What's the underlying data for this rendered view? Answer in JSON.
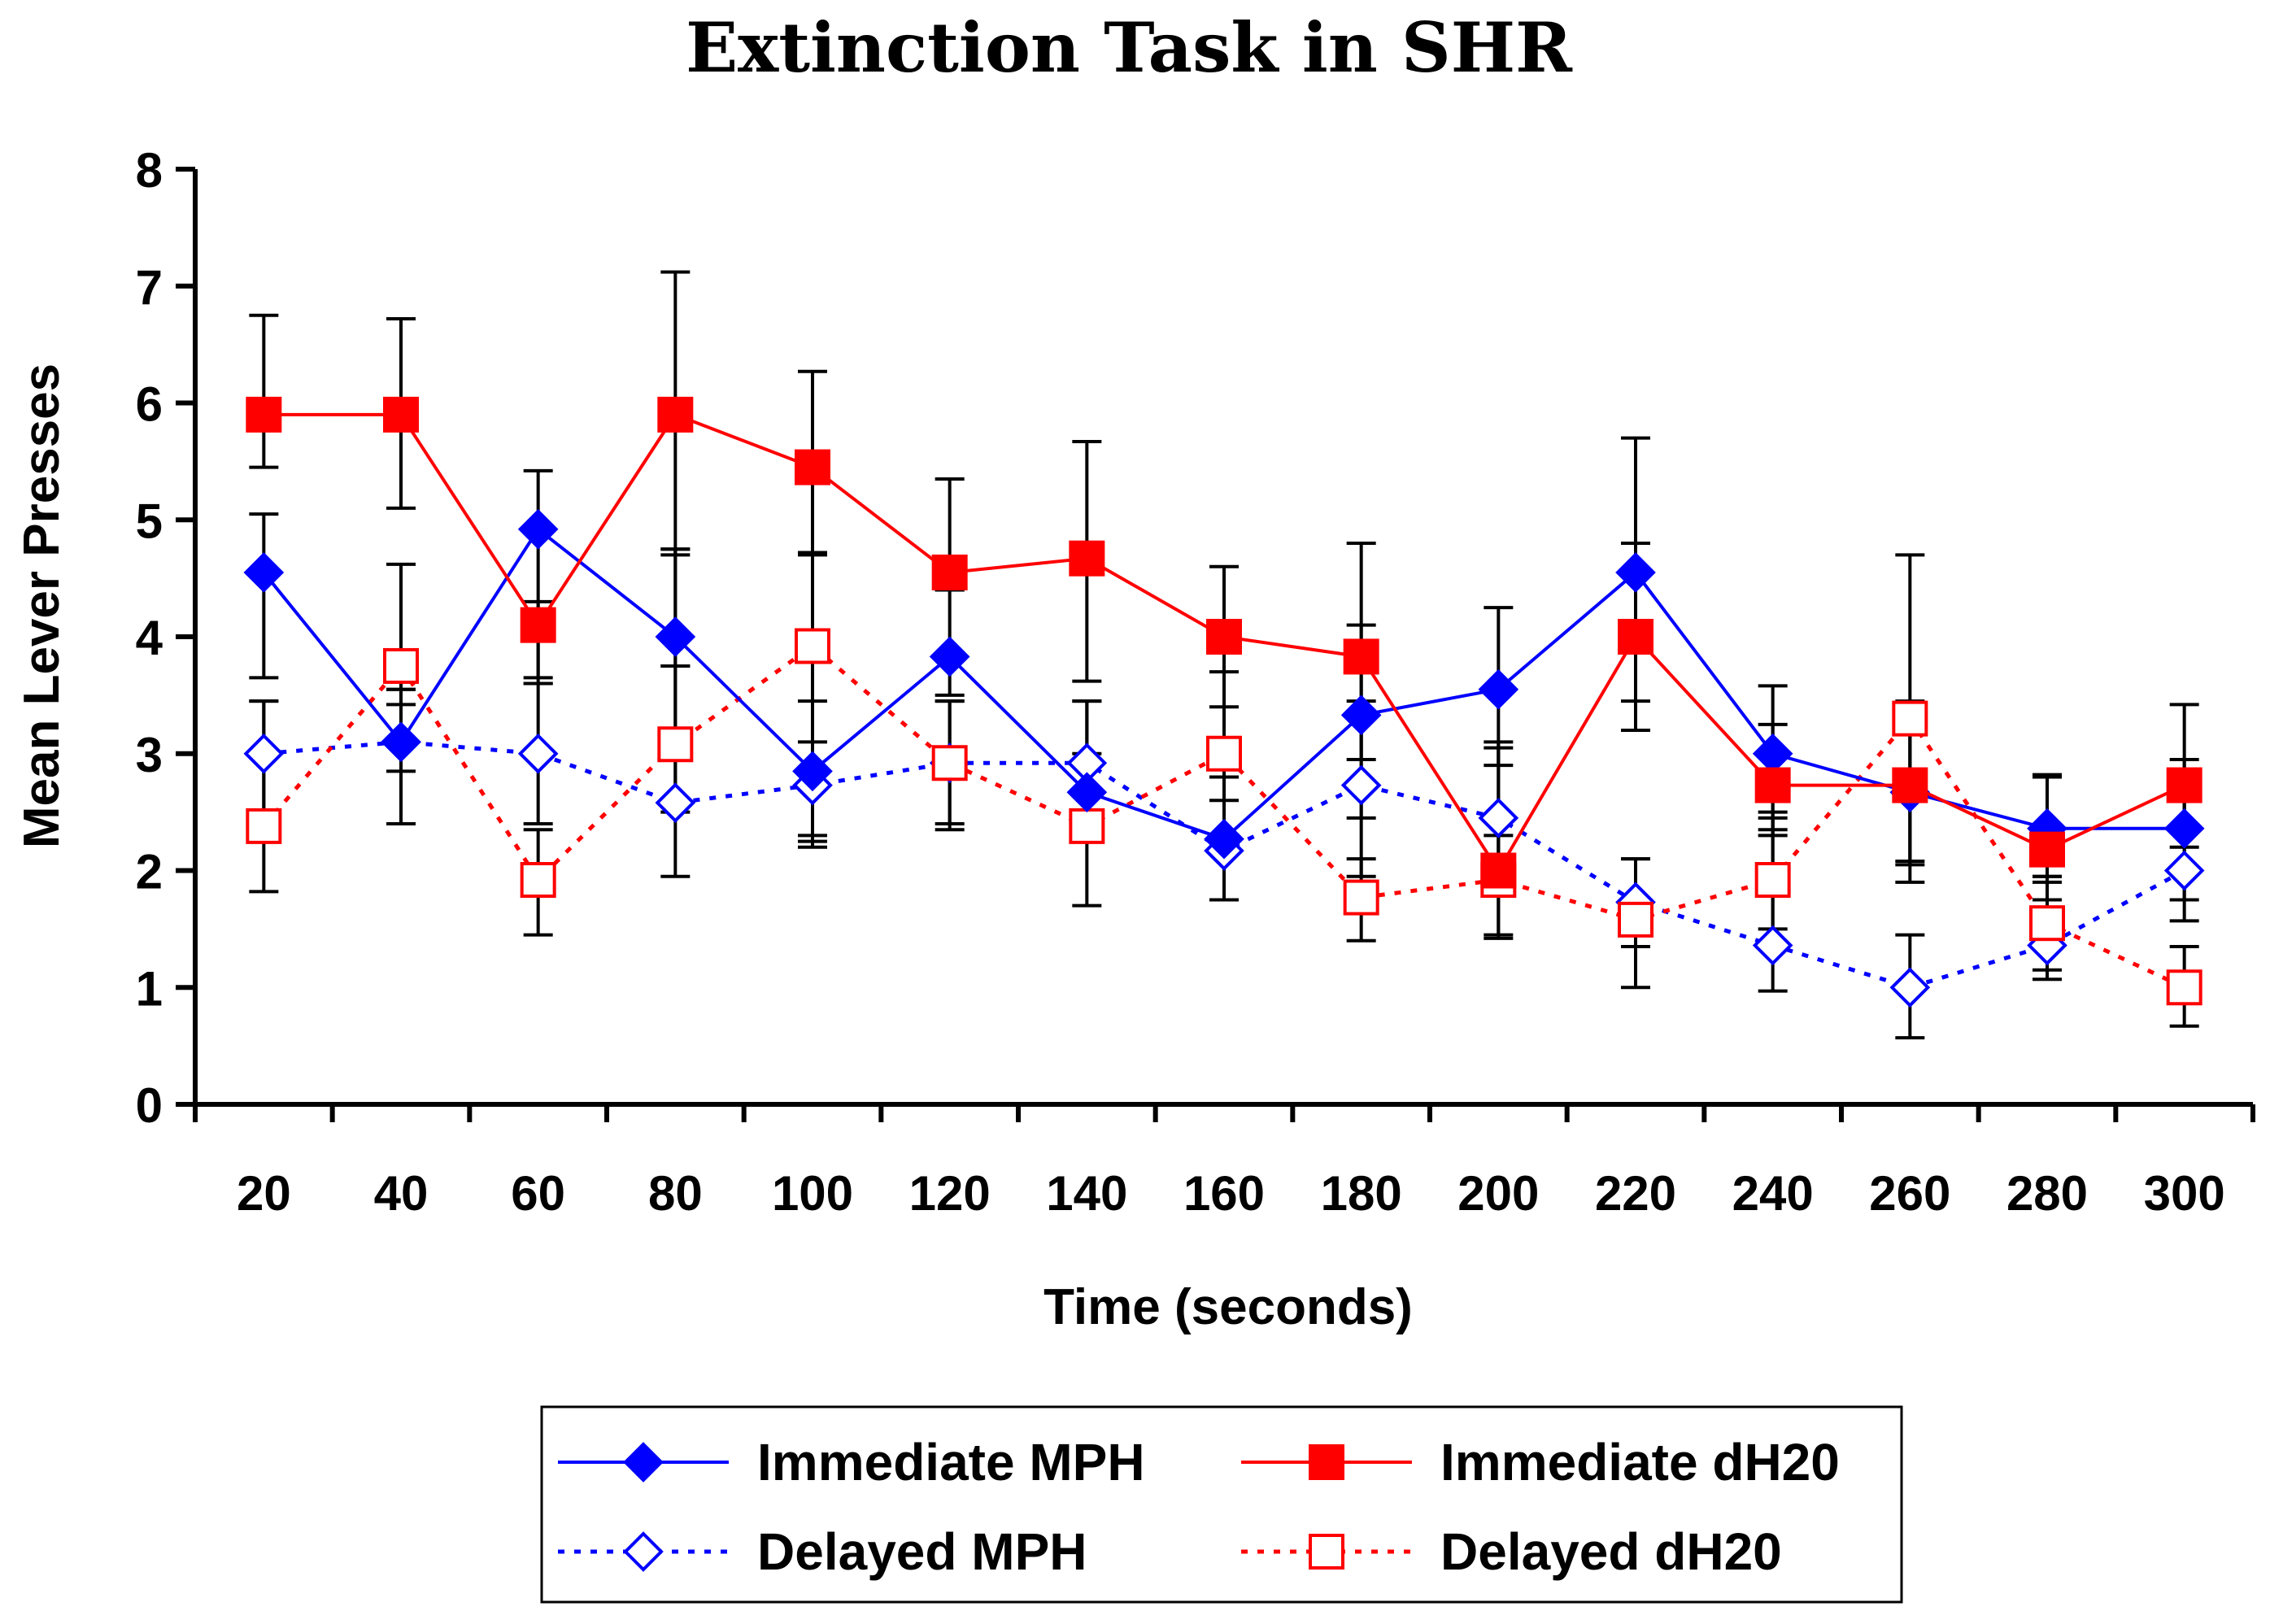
{
  "chart_data": {
    "type": "line",
    "title": "Extinction Task in SHR",
    "xlabel": "Time (seconds)",
    "ylabel": "Mean Lever Presses",
    "ylim": [
      0,
      8
    ],
    "yticks": [
      "0",
      "1",
      "2",
      "3",
      "4",
      "5",
      "6",
      "7",
      "8"
    ],
    "categories": [
      "20",
      "40",
      "60",
      "80",
      "100",
      "120",
      "140",
      "160",
      "180",
      "200",
      "220",
      "240",
      "260",
      "280",
      "300"
    ],
    "legend_position": "bottom",
    "series": [
      {
        "name": "Immediate MPH",
        "color": "#0000ff",
        "line": "solid",
        "marker": "diamond",
        "filled": true,
        "values": [
          4.55,
          3.1,
          4.92,
          4.0,
          2.85,
          3.83,
          2.67,
          2.27,
          3.33,
          3.55,
          4.55,
          3.0,
          2.67,
          2.36,
          2.36
        ],
        "err_hi": [
          5.05,
          3.55,
          5.42,
          4.75,
          3.45,
          4.4,
          3.45,
          2.8,
          4.1,
          4.25,
          5.7,
          3.58,
          3.3,
          2.82,
          2.95
        ],
        "err_lo": [
          3.65,
          2.85,
          3.6,
          3.75,
          2.3,
          3.5,
          2.5,
          1.75,
          2.45,
          2.9,
          3.45,
          2.3,
          2.08,
          1.9,
          1.75
        ]
      },
      {
        "name": "Immediate dH20",
        "color": "#ff0000",
        "line": "solid",
        "marker": "square",
        "filled": true,
        "values": [
          5.9,
          5.9,
          4.1,
          5.9,
          5.45,
          4.55,
          4.67,
          4.0,
          3.83,
          2.0,
          4.0,
          2.73,
          2.73,
          2.18,
          2.73
        ],
        "err_hi": [
          6.75,
          6.72,
          4.3,
          7.12,
          6.27,
          5.35,
          5.67,
          4.6,
          4.8,
          3.1,
          4.8,
          3.25,
          4.7,
          2.8,
          3.42
        ],
        "err_lo": [
          5.45,
          5.1,
          3.65,
          4.7,
          4.72,
          4.4,
          3.62,
          3.4,
          2.95,
          1.45,
          3.2,
          2.35,
          1.9,
          1.75,
          2.2
        ]
      },
      {
        "name": "Delayed MPH",
        "color": "#0000ff",
        "line": "dotted",
        "marker": "diamond",
        "filled": false,
        "values": [
          3.0,
          3.1,
          3.0,
          2.58,
          2.73,
          2.92,
          2.92,
          2.17,
          2.73,
          2.45,
          1.73,
          1.36,
          1.0,
          1.36,
          2.0
        ],
        "err_hi": [
          3.45,
          3.55,
          3.6,
          3.75,
          3.1,
          3.45,
          3.45,
          2.6,
          3.45,
          3.05,
          2.1,
          2.45,
          1.45,
          1.95,
          2.6
        ],
        "err_lo": [
          2.4,
          2.4,
          2.4,
          1.95,
          2.25,
          2.4,
          2.45,
          1.75,
          1.95,
          1.95,
          1.35,
          0.97,
          0.57,
          1.07,
          1.57
        ]
      },
      {
        "name": "Delayed dH20",
        "color": "#ff0000",
        "line": "dotted",
        "marker": "square",
        "filled": false,
        "values": [
          2.38,
          3.75,
          1.92,
          3.08,
          3.92,
          2.92,
          2.38,
          3.0,
          1.77,
          1.92,
          1.58,
          1.92,
          3.3,
          1.55,
          1.0
        ],
        "err_hi": [
          3.45,
          4.62,
          2.35,
          4.75,
          4.7,
          3.45,
          3.0,
          3.7,
          2.1,
          2.3,
          2.1,
          2.5,
          3.45,
          1.95,
          1.35
        ],
        "err_lo": [
          1.82,
          3.42,
          1.45,
          2.5,
          2.2,
          2.35,
          1.7,
          2.3,
          1.4,
          1.42,
          1.0,
          1.5,
          2.05,
          1.15,
          0.67
        ]
      }
    ]
  }
}
